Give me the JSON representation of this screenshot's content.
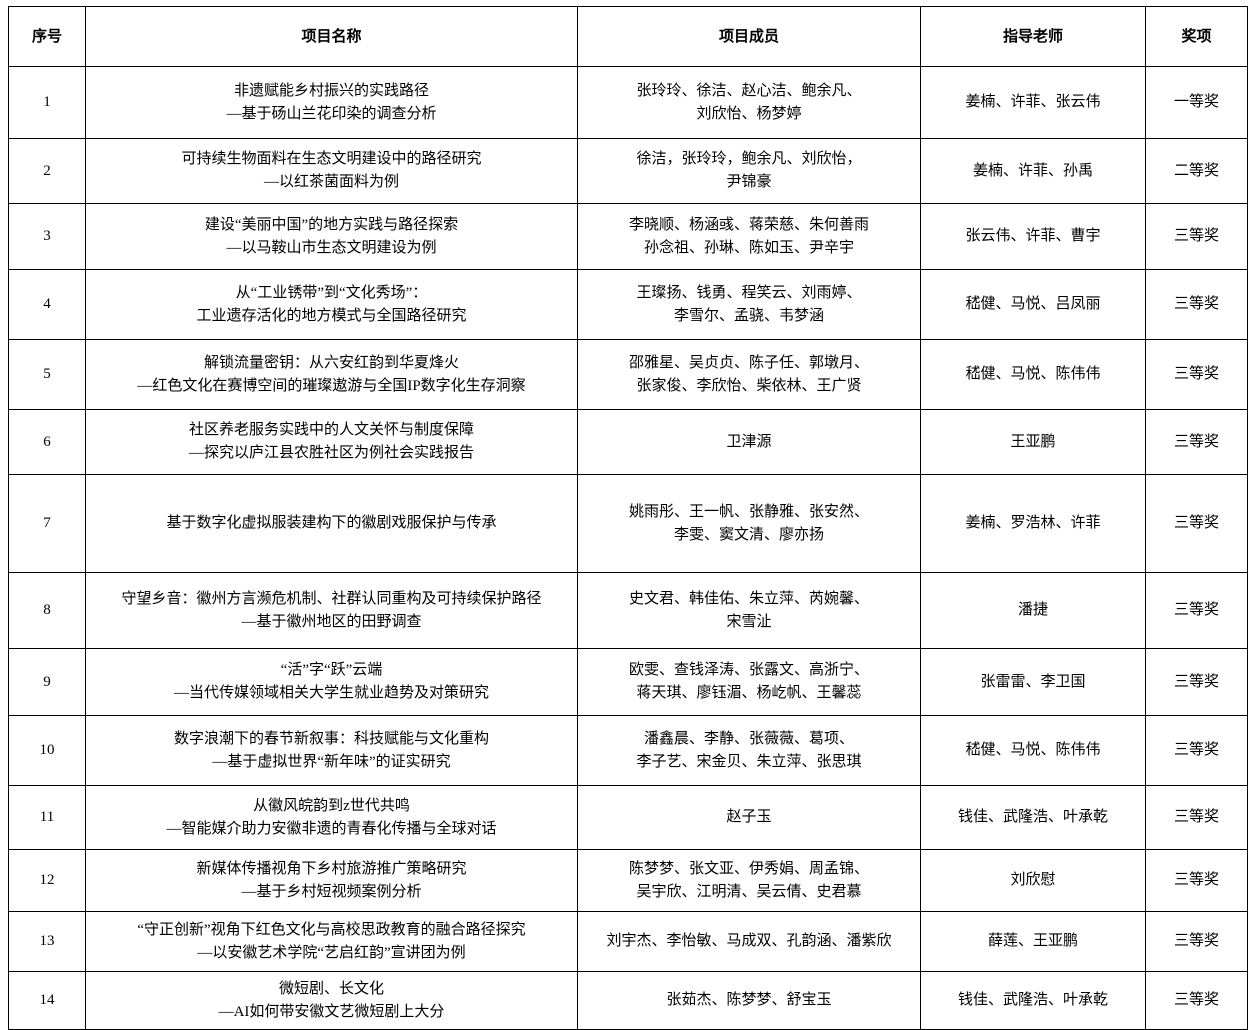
{
  "table": {
    "headers": [
      "序号",
      "项目名称",
      "项目成员",
      "指导老师",
      "奖项"
    ],
    "rows": [
      {
        "no": "1",
        "name": [
          "非遗赋能乡村振兴的实践路径",
          "—基于砀山兰花印染的调查分析"
        ],
        "members": [
          "张玲玲、徐洁、赵心洁、鲍余凡、",
          "刘欣怡、杨梦婷"
        ],
        "teachers": "姜楠、许菲、张云伟",
        "award": "一等奖"
      },
      {
        "no": "2",
        "name": [
          "可持续生物面料在生态文明建设中的路径研究",
          "—以红茶菌面料为例"
        ],
        "members": [
          "徐洁，张玲玲，鲍余凡、刘欣怡，",
          "尹锦豪"
        ],
        "teachers": "姜楠、许菲、孙禹",
        "award": "二等奖"
      },
      {
        "no": "3",
        "name": [
          "建设“美丽中国”的地方实践与路径探索",
          "—以马鞍山市生态文明建设为例"
        ],
        "members": [
          "李晓顺、杨涵彧、蒋荣慈、朱何善雨",
          "孙念祖、孙琳、陈如玉、尹辛宇"
        ],
        "teachers": "张云伟、许菲、曹宇",
        "award": "三等奖"
      },
      {
        "no": "4",
        "name": [
          "从“工业锈带”到“文化秀场”：",
          "工业遗存活化的地方模式与全国路径研究"
        ],
        "members": [
          "王璨扬、钱勇、程笑云、刘雨婷、",
          "李雪尔、孟骁、韦梦涵"
        ],
        "teachers": "嵇健、马悦、吕凤丽",
        "award": "三等奖"
      },
      {
        "no": "5",
        "name": [
          "解锁流量密钥：从六安红韵到华夏烽火",
          "—红色文化在赛博空间的璀璨遨游与全国IP数字化生存洞察"
        ],
        "members": [
          "邵雅星、吴贞贞、陈子任、郭墩月、",
          "张家俊、李欣怡、柴依林、王广贤"
        ],
        "teachers": "嵇健、马悦、陈伟伟",
        "award": "三等奖"
      },
      {
        "no": "6",
        "name": [
          "社区养老服务实践中的人文关怀与制度保障",
          "—探究以庐江县农胜社区为例社会实践报告"
        ],
        "members": [
          "卫津源"
        ],
        "teachers": "王亚鹏",
        "award": "三等奖"
      },
      {
        "no": "7",
        "name": [
          "基于数字化虚拟服装建构下的徽剧戏服保护与传承"
        ],
        "members": [
          "姚雨彤、王一帆、张静雅、张安然、",
          "李雯、窦文清、廖亦扬"
        ],
        "teachers": "姜楠、罗浩林、许菲",
        "award": "三等奖"
      },
      {
        "no": "8",
        "name": [
          "守望乡音：徽州方言濒危机制、社群认同重构及可持续保护路径",
          "—基于徽州地区的田野调查"
        ],
        "members": [
          "史文君、韩佳佑、朱立萍、芮婉馨、",
          "宋雪沚"
        ],
        "teachers": "潘捷",
        "award": "三等奖"
      },
      {
        "no": "9",
        "name": [
          "“活”字“跃”云端",
          "—当代传媒领域相关大学生就业趋势及对策研究"
        ],
        "members": [
          "欧雯、查钱泽涛、张露文、高浙宁、",
          "蒋天琪、廖钰湄、杨屹帆、王馨蕊"
        ],
        "teachers": "张雷雷、李卫国",
        "award": "三等奖"
      },
      {
        "no": "10",
        "name": [
          "数字浪潮下的春节新叙事：科技赋能与文化重构",
          "—基于虚拟世界“新年味”的证实研究"
        ],
        "members": [
          "潘鑫晨、李静、张薇薇、葛项、",
          "李子艺、宋金贝、朱立萍、张思琪"
        ],
        "teachers": "嵇健、马悦、陈伟伟",
        "award": "三等奖"
      },
      {
        "no": "11",
        "name": [
          "从徽风皖韵到z世代共鸣",
          "—智能媒介助力安徽非遗的青春化传播与全球对话"
        ],
        "members": [
          "赵子玉"
        ],
        "teachers": "钱佳、武隆浩、叶承乾",
        "award": "三等奖"
      },
      {
        "no": "12",
        "name": [
          "新媒体传播视角下乡村旅游推广策略研究",
          "—基于乡村短视频案例分析"
        ],
        "members": [
          "陈梦梦、张文亚、伊秀娟、周孟锦、",
          "吴宇欣、江明清、吴云倩、史君慕"
        ],
        "teachers": "刘欣慰",
        "award": "三等奖"
      },
      {
        "no": "13",
        "name": [
          "“守正创新”视角下红色文化与高校思政教育的融合路径探究",
          "—以安徽艺术学院“艺启红韵”宣讲团为例"
        ],
        "members": [
          "刘宇杰、李怡敏、马成双、孔韵涵、潘紫欣"
        ],
        "teachers": "薛莲、王亚鹏",
        "award": "三等奖"
      },
      {
        "no": "14",
        "name": [
          "微短剧、长文化",
          "—AI如何带安徽文艺微短剧上大分"
        ],
        "members": [
          "张茹杰、陈梦梦、舒宝玉"
        ],
        "teachers": "钱佳、武隆浩、叶承乾",
        "award": "三等奖"
      }
    ]
  }
}
